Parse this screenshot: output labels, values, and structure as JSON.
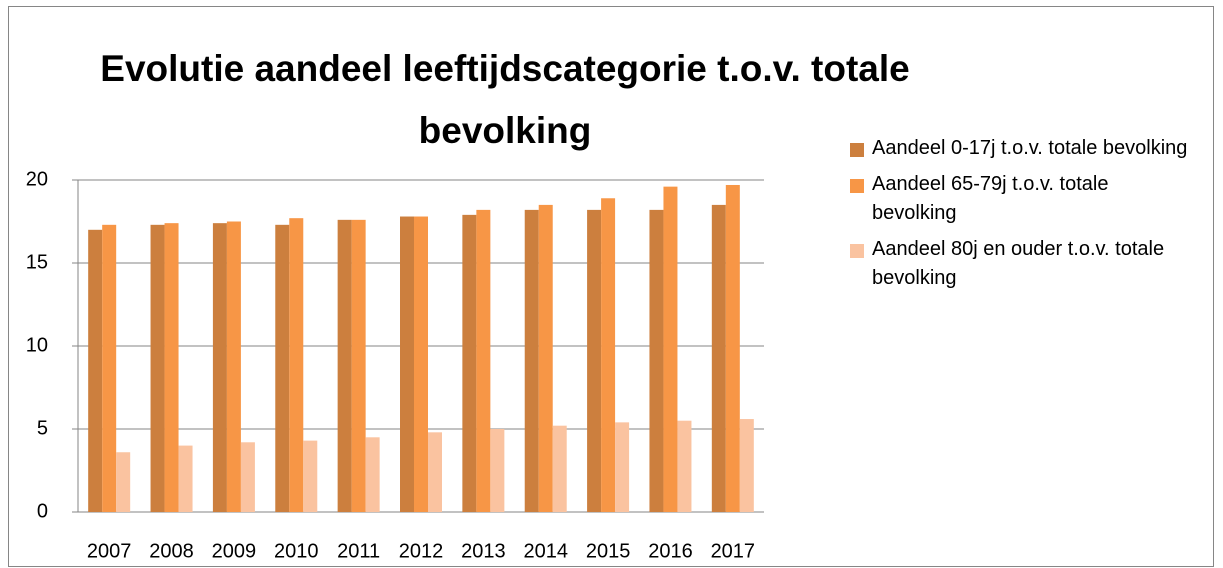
{
  "chart_data": {
    "type": "bar",
    "title": "Evolutie aandeel leeftijdscategorie t.o.v. totale bevolking",
    "categories": [
      "2007",
      "2008",
      "2009",
      "2010",
      "2011",
      "2012",
      "2013",
      "2014",
      "2015",
      "2016",
      "2017"
    ],
    "series": [
      {
        "name": "Aandeel 0-17j t.o.v. totale bevolking",
        "color": "#cc7f3e",
        "values": [
          17.0,
          17.3,
          17.4,
          17.3,
          17.6,
          17.8,
          17.9,
          18.2,
          18.2,
          18.2,
          18.5
        ]
      },
      {
        "name": "Aandeel 65-79j t.o.v. totale bevolking",
        "color": "#f79646",
        "values": [
          17.3,
          17.4,
          17.5,
          17.7,
          17.6,
          17.8,
          18.2,
          18.5,
          18.9,
          19.6,
          19.7
        ]
      },
      {
        "name": "Aandeel 80j en ouder t.o.v. totale bevolking",
        "color": "#fac3a0",
        "values": [
          3.6,
          4.0,
          4.2,
          4.3,
          4.5,
          4.8,
          5.0,
          5.2,
          5.4,
          5.5,
          5.6
        ]
      }
    ],
    "ylim": [
      0,
      20
    ],
    "yticks": [
      0,
      5,
      10,
      15,
      20
    ],
    "grid": true,
    "legend": "right"
  }
}
